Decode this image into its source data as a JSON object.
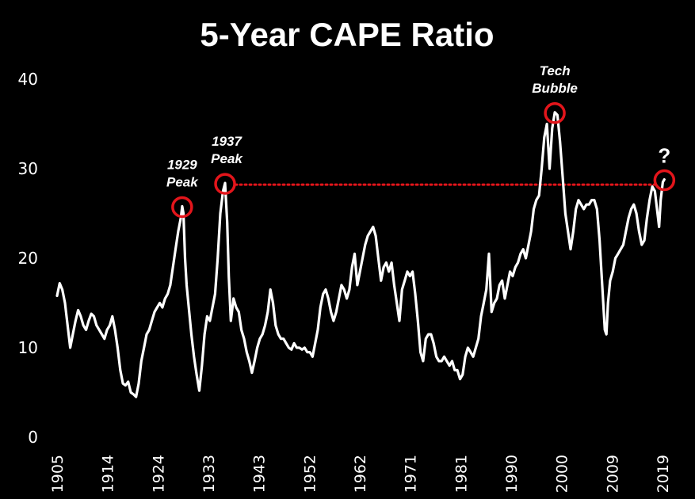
{
  "chart_data": {
    "type": "line",
    "title": "5-Year CAPE Ratio",
    "xlabel": "",
    "ylabel": "",
    "xlim": [
      1905,
      2021
    ],
    "ylim": [
      0,
      40
    ],
    "y_ticks": [
      0,
      10,
      20,
      30,
      40
    ],
    "x_tick_labels": [
      "1905",
      "1914",
      "1924",
      "1933",
      "1943",
      "1952",
      "1962",
      "1971",
      "1981",
      "1990",
      "2000",
      "2009",
      "2019"
    ],
    "grid": false,
    "legend": "none",
    "colors": {
      "line": "#ffffff",
      "highlight": "#e3151b",
      "background": "#000000"
    },
    "series": [
      {
        "values": [
          [
            1905,
            15.8
          ],
          [
            1905.5,
            17.2
          ],
          [
            1906,
            16.5
          ],
          [
            1906.5,
            15.0
          ],
          [
            1907,
            12.5
          ],
          [
            1907.5,
            10.0
          ],
          [
            1908,
            11.5
          ],
          [
            1908.5,
            13.0
          ],
          [
            1909,
            14.2
          ],
          [
            1909.5,
            13.5
          ],
          [
            1910,
            12.5
          ],
          [
            1910.5,
            12.0
          ],
          [
            1911,
            13.0
          ],
          [
            1911.5,
            13.8
          ],
          [
            1912,
            13.5
          ],
          [
            1912.5,
            12.5
          ],
          [
            1913,
            12.0
          ],
          [
            1913.5,
            11.5
          ],
          [
            1914,
            11.0
          ],
          [
            1914.5,
            12.0
          ],
          [
            1915,
            12.5
          ],
          [
            1915.5,
            13.5
          ],
          [
            1916,
            12.0
          ],
          [
            1916.5,
            10.0
          ],
          [
            1917,
            7.5
          ],
          [
            1917.5,
            6.0
          ],
          [
            1918,
            5.8
          ],
          [
            1918.5,
            6.2
          ],
          [
            1919,
            5.0
          ],
          [
            1919.5,
            4.8
          ],
          [
            1920,
            4.5
          ],
          [
            1920.5,
            6.0
          ],
          [
            1921,
            8.5
          ],
          [
            1921.5,
            10.0
          ],
          [
            1922,
            11.5
          ],
          [
            1922.5,
            12.0
          ],
          [
            1923,
            13.0
          ],
          [
            1923.5,
            14.0
          ],
          [
            1924,
            14.5
          ],
          [
            1924.5,
            15.0
          ],
          [
            1925,
            14.5
          ],
          [
            1925.5,
            15.5
          ],
          [
            1926,
            16.0
          ],
          [
            1926.5,
            17.0
          ],
          [
            1927,
            19.0
          ],
          [
            1927.5,
            21.0
          ],
          [
            1928,
            23.0
          ],
          [
            1928.5,
            24.5
          ],
          [
            1928.75,
            25.8
          ],
          [
            1929,
            25.0
          ],
          [
            1929.3,
            20.0
          ],
          [
            1929.6,
            17.0
          ],
          [
            1930,
            14.5
          ],
          [
            1930.5,
            11.5
          ],
          [
            1931,
            9.0
          ],
          [
            1931.5,
            7.0
          ],
          [
            1932,
            5.2
          ],
          [
            1932.5,
            8.0
          ],
          [
            1933,
            11.5
          ],
          [
            1933.5,
            13.5
          ],
          [
            1934,
            13.0
          ],
          [
            1934.5,
            14.5
          ],
          [
            1935,
            16.0
          ],
          [
            1935.5,
            20.0
          ],
          [
            1936,
            25.0
          ],
          [
            1936.5,
            27.5
          ],
          [
            1936.9,
            28.4
          ],
          [
            1937.3,
            24.0
          ],
          [
            1937.6,
            18.0
          ],
          [
            1938,
            13.0
          ],
          [
            1938.5,
            15.5
          ],
          [
            1939,
            14.5
          ],
          [
            1939.5,
            14.0
          ],
          [
            1940,
            12.0
          ],
          [
            1940.5,
            11.0
          ],
          [
            1941,
            9.5
          ],
          [
            1941.5,
            8.5
          ],
          [
            1942,
            7.2
          ],
          [
            1942.5,
            8.5
          ],
          [
            1943,
            10.0
          ],
          [
            1943.5,
            11.0
          ],
          [
            1944,
            11.5
          ],
          [
            1944.5,
            12.5
          ],
          [
            1945,
            14.0
          ],
          [
            1945.5,
            16.5
          ],
          [
            1946,
            15.0
          ],
          [
            1946.5,
            12.5
          ],
          [
            1947,
            11.5
          ],
          [
            1947.5,
            11.0
          ],
          [
            1948,
            11.0
          ],
          [
            1948.5,
            10.5
          ],
          [
            1949,
            10.0
          ],
          [
            1949.5,
            9.8
          ],
          [
            1950,
            10.5
          ],
          [
            1950.5,
            10.0
          ],
          [
            1951,
            10.0
          ],
          [
            1951.5,
            9.8
          ],
          [
            1952,
            10.0
          ],
          [
            1952.5,
            9.5
          ],
          [
            1953,
            9.5
          ],
          [
            1953.5,
            9.0
          ],
          [
            1954,
            10.5
          ],
          [
            1954.5,
            12.0
          ],
          [
            1955,
            14.5
          ],
          [
            1955.5,
            16.0
          ],
          [
            1956,
            16.5
          ],
          [
            1956.5,
            15.5
          ],
          [
            1957,
            14.0
          ],
          [
            1957.5,
            13.0
          ],
          [
            1958,
            14.0
          ],
          [
            1958.5,
            15.5
          ],
          [
            1959,
            17.0
          ],
          [
            1959.5,
            16.5
          ],
          [
            1960,
            15.5
          ],
          [
            1960.5,
            16.5
          ],
          [
            1961,
            19.0
          ],
          [
            1961.5,
            20.5
          ],
          [
            1962,
            17.0
          ],
          [
            1962.5,
            18.5
          ],
          [
            1963,
            20.0
          ],
          [
            1963.5,
            21.5
          ],
          [
            1964,
            22.5
          ],
          [
            1964.5,
            23.0
          ],
          [
            1965,
            23.5
          ],
          [
            1965.5,
            22.5
          ],
          [
            1966,
            20.0
          ],
          [
            1966.5,
            17.5
          ],
          [
            1967,
            19.0
          ],
          [
            1967.5,
            19.5
          ],
          [
            1968,
            18.5
          ],
          [
            1968.5,
            19.5
          ],
          [
            1969,
            17.0
          ],
          [
            1969.5,
            15.0
          ],
          [
            1970,
            13.0
          ],
          [
            1970.5,
            16.5
          ],
          [
            1971,
            17.5
          ],
          [
            1971.5,
            18.5
          ],
          [
            1972,
            18.0
          ],
          [
            1972.5,
            18.5
          ],
          [
            1973,
            16.0
          ],
          [
            1973.5,
            13.0
          ],
          [
            1974,
            9.5
          ],
          [
            1974.5,
            8.5
          ],
          [
            1975,
            11.0
          ],
          [
            1975.5,
            11.5
          ],
          [
            1976,
            11.5
          ],
          [
            1976.5,
            10.5
          ],
          [
            1977,
            9.0
          ],
          [
            1977.5,
            8.5
          ],
          [
            1978,
            8.5
          ],
          [
            1978.5,
            9.0
          ],
          [
            1979,
            8.5
          ],
          [
            1979.5,
            8.0
          ],
          [
            1980,
            8.5
          ],
          [
            1980.5,
            7.5
          ],
          [
            1981,
            7.5
          ],
          [
            1981.5,
            6.5
          ],
          [
            1982,
            7.0
          ],
          [
            1982.5,
            9.0
          ],
          [
            1983,
            10.0
          ],
          [
            1983.5,
            9.5
          ],
          [
            1984,
            9.0
          ],
          [
            1984.5,
            10.0
          ],
          [
            1985,
            11.0
          ],
          [
            1985.5,
            13.5
          ],
          [
            1986,
            15.0
          ],
          [
            1986.5,
            16.5
          ],
          [
            1987,
            20.5
          ],
          [
            1987.5,
            14.0
          ],
          [
            1988,
            15.0
          ],
          [
            1988.5,
            15.5
          ],
          [
            1989,
            17.0
          ],
          [
            1989.5,
            17.5
          ],
          [
            1990,
            15.5
          ],
          [
            1990.5,
            17.0
          ],
          [
            1991,
            18.5
          ],
          [
            1991.5,
            18.0
          ],
          [
            1992,
            19.0
          ],
          [
            1992.5,
            19.5
          ],
          [
            1993,
            20.5
          ],
          [
            1993.5,
            21.0
          ],
          [
            1994,
            20.0
          ],
          [
            1994.5,
            21.5
          ],
          [
            1995,
            23.0
          ],
          [
            1995.5,
            25.5
          ],
          [
            1996,
            26.5
          ],
          [
            1996.5,
            27.0
          ],
          [
            1997,
            30.0
          ],
          [
            1997.5,
            33.5
          ],
          [
            1998,
            35.0
          ],
          [
            1998.5,
            30.0
          ],
          [
            1999,
            34.5
          ],
          [
            1999.5,
            36.3
          ],
          [
            2000,
            36.0
          ],
          [
            2000.5,
            33.0
          ],
          [
            2001,
            29.0
          ],
          [
            2001.5,
            25.0
          ],
          [
            2002,
            23.0
          ],
          [
            2002.5,
            21.0
          ],
          [
            2003,
            23.0
          ],
          [
            2003.5,
            25.5
          ],
          [
            2004,
            26.5
          ],
          [
            2004.5,
            26.0
          ],
          [
            2005,
            25.5
          ],
          [
            2005.5,
            26.0
          ],
          [
            2006,
            26.0
          ],
          [
            2006.5,
            26.5
          ],
          [
            2007,
            26.5
          ],
          [
            2007.5,
            25.5
          ],
          [
            2008,
            22.0
          ],
          [
            2008.5,
            17.0
          ],
          [
            2009,
            12.0
          ],
          [
            2009.3,
            11.5
          ],
          [
            2009.6,
            15.0
          ],
          [
            2010,
            17.5
          ],
          [
            2010.5,
            18.5
          ],
          [
            2011,
            20.0
          ],
          [
            2011.5,
            20.5
          ],
          [
            2012,
            21.0
          ],
          [
            2012.5,
            21.5
          ],
          [
            2013,
            23.0
          ],
          [
            2013.5,
            24.5
          ],
          [
            2014,
            25.5
          ],
          [
            2014.5,
            26.0
          ],
          [
            2015,
            25.0
          ],
          [
            2015.5,
            23.0
          ],
          [
            2016,
            21.5
          ],
          [
            2016.5,
            22.0
          ],
          [
            2017,
            24.5
          ],
          [
            2017.5,
            26.5
          ],
          [
            2018,
            28.0
          ],
          [
            2018.5,
            27.5
          ],
          [
            2019,
            25.0
          ],
          [
            2019.3,
            23.5
          ],
          [
            2019.6,
            26.5
          ],
          [
            2020,
            28.5
          ],
          [
            2020.3,
            28.8
          ]
        ]
      }
    ],
    "annotations": [
      {
        "lines": [
          "1929",
          "Peak"
        ],
        "x": 1928.75,
        "y": 25.8
      },
      {
        "lines": [
          "1937",
          "Peak"
        ],
        "x": 1936.9,
        "y": 28.4
      },
      {
        "lines": [
          "Tech",
          "Bubble"
        ],
        "x": 1999.5,
        "y": 36.3
      },
      {
        "lines": [
          "?"
        ],
        "x": 2020.3,
        "y": 28.8
      }
    ],
    "reference_line": {
      "y": 28.4,
      "x_from": 1936.9,
      "x_to": 2020.3,
      "style": "dotted"
    }
  }
}
